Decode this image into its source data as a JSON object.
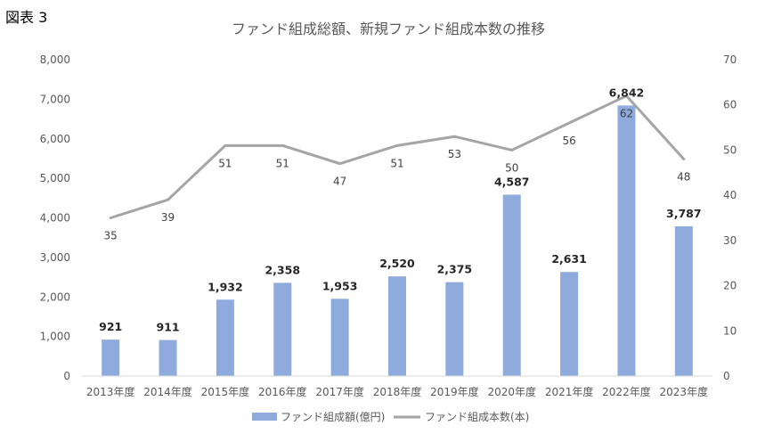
{
  "figure_label": "図表 3",
  "colors": {
    "bar": "#8faadc",
    "line": "#a5a5a5",
    "axis": "#d9d9d9"
  },
  "chart_data": {
    "type": "bar",
    "title": "ファンド組成総額、新規ファンド組成本数の推移",
    "categories": [
      "2013年度",
      "2014年度",
      "2015年度",
      "2016年度",
      "2017年度",
      "2018年度",
      "2019年度",
      "2020年度",
      "2021年度",
      "2022年度",
      "2023年度"
    ],
    "y_ticks": [
      "0",
      "1,000",
      "2,000",
      "3,000",
      "4,000",
      "5,000",
      "6,000",
      "7,000",
      "8,000"
    ],
    "y2_ticks": [
      "0",
      "10",
      "20",
      "30",
      "40",
      "50",
      "60",
      "70"
    ],
    "ylim": [
      0,
      8000
    ],
    "y2lim": [
      0,
      70
    ],
    "grid": false,
    "legend_position": "bottom",
    "series": [
      {
        "name": "ファンド組成額(億円)",
        "type": "bar",
        "axis": "left",
        "values": [
          921,
          911,
          1932,
          2358,
          1953,
          2520,
          2375,
          4587,
          2631,
          6842,
          3787
        ],
        "labels": [
          "921",
          "911",
          "1,932",
          "2,358",
          "1,953",
          "2,520",
          "2,375",
          "4,587",
          "2,631",
          "6,842",
          "3,787"
        ]
      },
      {
        "name": "ファンド組成本数(本)",
        "type": "line",
        "axis": "right",
        "values": [
          35,
          39,
          51,
          51,
          47,
          51,
          53,
          50,
          56,
          62,
          48
        ],
        "labels": [
          "35",
          "39",
          "51",
          "51",
          "47",
          "51",
          "53",
          "50",
          "56",
          "62",
          "48"
        ]
      }
    ]
  }
}
